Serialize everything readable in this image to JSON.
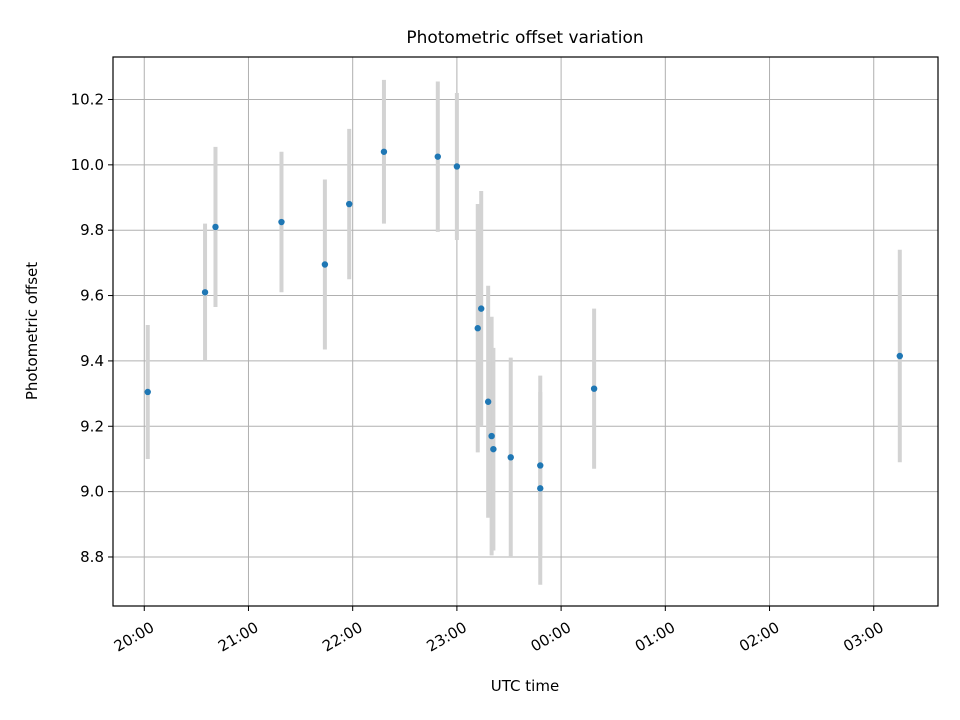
{
  "chart_data": {
    "type": "scatter",
    "title": "Photometric offset variation",
    "xlabel": "UTC time",
    "ylabel": "Photometric offset",
    "x_axis_kind": "time",
    "xlim": [
      "19:42",
      "03:37"
    ],
    "ylim": [
      8.65,
      10.33
    ],
    "grid": true,
    "x_ticks": [
      "20:00",
      "21:00",
      "22:00",
      "23:00",
      "00:00",
      "01:00",
      "02:00",
      "03:00"
    ],
    "y_ticks": [
      "8.8",
      "9.0",
      "9.2",
      "9.4",
      "9.6",
      "9.8",
      "10.0",
      "10.2"
    ],
    "series": [
      {
        "marker_color": "#1f77b4",
        "errorbar_color": "#d3d3d3",
        "points": [
          {
            "x": "20:02",
            "y": 9.305,
            "err": 0.205
          },
          {
            "x": "20:35",
            "y": 9.61,
            "err": 0.21
          },
          {
            "x": "20:41",
            "y": 9.81,
            "err": 0.245
          },
          {
            "x": "21:19",
            "y": 9.825,
            "err": 0.215
          },
          {
            "x": "21:44",
            "y": 9.695,
            "err": 0.26
          },
          {
            "x": "21:58",
            "y": 9.88,
            "err": 0.23
          },
          {
            "x": "22:18",
            "y": 10.04,
            "err": 0.22
          },
          {
            "x": "22:49",
            "y": 10.025,
            "err": 0.23
          },
          {
            "x": "23:00",
            "y": 9.995,
            "err": 0.225
          },
          {
            "x": "23:12",
            "y": 9.5,
            "err": 0.38
          },
          {
            "x": "23:14",
            "y": 9.56,
            "err": 0.36
          },
          {
            "x": "23:18",
            "y": 9.275,
            "err": 0.355
          },
          {
            "x": "23:20",
            "y": 9.17,
            "err": 0.365
          },
          {
            "x": "23:21",
            "y": 9.13,
            "err": 0.31
          },
          {
            "x": "23:31",
            "y": 9.105,
            "err": 0.305
          },
          {
            "x": "23:48",
            "y": 9.08,
            "err": 0.275
          },
          {
            "x": "23:48",
            "y": 9.01,
            "err": 0.295
          },
          {
            "x": "00:19",
            "y": 9.315,
            "err": 0.245
          },
          {
            "x": "03:15",
            "y": 9.415,
            "err": 0.325
          }
        ]
      }
    ]
  }
}
